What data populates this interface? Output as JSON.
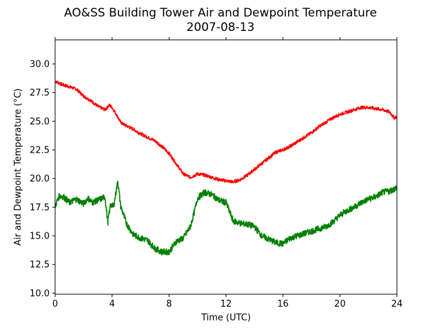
{
  "chart_data": {
    "type": "line",
    "title": "AO&SS Building Tower Air and Dewpoint Temperature",
    "subtitle": "2007-08-13",
    "xlabel": "Time (UTC)",
    "ylabel": "Air and Dewpoint Temperature (°C)",
    "xlim": [
      0,
      24
    ],
    "ylim": [
      9.9,
      32.1
    ],
    "xticks": [
      0,
      4,
      8,
      12,
      16,
      20,
      24
    ],
    "xtick_labels": [
      "0",
      "4",
      "8",
      "12",
      "16",
      "20",
      "24"
    ],
    "yticks": [
      10.0,
      12.5,
      15.0,
      17.5,
      20.0,
      22.5,
      25.0,
      27.5,
      30.0
    ],
    "ytick_labels": [
      "10.0",
      "12.5",
      "15.0",
      "17.5",
      "20.0",
      "22.5",
      "25.0",
      "27.5",
      "30.0"
    ],
    "grid": false,
    "series": [
      {
        "color": "#ff0000",
        "x": [
          0.0,
          0.5,
          1.0,
          1.5,
          2.0,
          2.5,
          3.0,
          3.5,
          3.8,
          4.0,
          4.3,
          4.6,
          5.0,
          5.5,
          6.0,
          6.5,
          7.0,
          7.5,
          8.0,
          8.5,
          9.0,
          9.5,
          10.0,
          10.5,
          11.0,
          11.5,
          12.0,
          12.5,
          13.0,
          13.5,
          14.0,
          14.5,
          15.0,
          15.5,
          16.0,
          16.5,
          17.0,
          17.5,
          18.0,
          18.5,
          19.0,
          19.5,
          20.0,
          20.5,
          21.0,
          21.5,
          22.0,
          22.5,
          23.0,
          23.5,
          23.8,
          24.0
        ],
        "y": [
          28.5,
          28.2,
          28.0,
          27.8,
          27.2,
          26.8,
          26.3,
          26.0,
          26.4,
          26.2,
          25.6,
          24.9,
          24.6,
          24.3,
          23.9,
          23.6,
          23.3,
          22.8,
          22.2,
          21.3,
          20.4,
          20.1,
          20.4,
          20.3,
          20.1,
          19.9,
          19.8,
          19.7,
          19.9,
          20.3,
          20.8,
          21.3,
          21.8,
          22.3,
          22.5,
          22.8,
          23.2,
          23.6,
          24.0,
          24.5,
          24.9,
          25.3,
          25.6,
          25.8,
          26.0,
          26.2,
          26.2,
          26.1,
          26.0,
          25.8,
          25.3,
          25.4
        ]
      },
      {
        "color": "#008000",
        "x": [
          0.0,
          0.3,
          0.6,
          1.0,
          1.5,
          2.0,
          2.3,
          2.6,
          3.0,
          3.5,
          3.7,
          3.9,
          4.1,
          4.4,
          4.6,
          5.0,
          5.5,
          6.0,
          6.5,
          7.0,
          7.5,
          8.0,
          8.5,
          9.0,
          9.5,
          9.8,
          10.0,
          10.5,
          11.0,
          11.5,
          12.0,
          12.5,
          13.0,
          13.5,
          14.0,
          14.5,
          15.0,
          15.5,
          16.0,
          16.5,
          17.0,
          17.5,
          18.0,
          18.5,
          19.0,
          19.5,
          20.0,
          20.5,
          21.0,
          21.5,
          22.0,
          22.5,
          23.0,
          23.5,
          24.0
        ],
        "y": [
          17.6,
          18.5,
          18.4,
          17.9,
          18.2,
          17.8,
          18.3,
          17.9,
          18.1,
          18.4,
          16.2,
          17.8,
          17.5,
          19.8,
          17.6,
          16.1,
          15.1,
          14.8,
          14.6,
          13.9,
          13.6,
          13.6,
          14.5,
          14.8,
          15.8,
          17.2,
          18.3,
          18.8,
          18.6,
          18.1,
          17.9,
          16.3,
          16.1,
          16.0,
          15.8,
          15.0,
          14.7,
          14.4,
          14.3,
          14.8,
          15.0,
          15.2,
          15.4,
          15.6,
          15.8,
          16.2,
          16.8,
          17.2,
          17.5,
          17.9,
          18.2,
          18.4,
          18.8,
          18.9,
          19.2
        ]
      }
    ]
  }
}
